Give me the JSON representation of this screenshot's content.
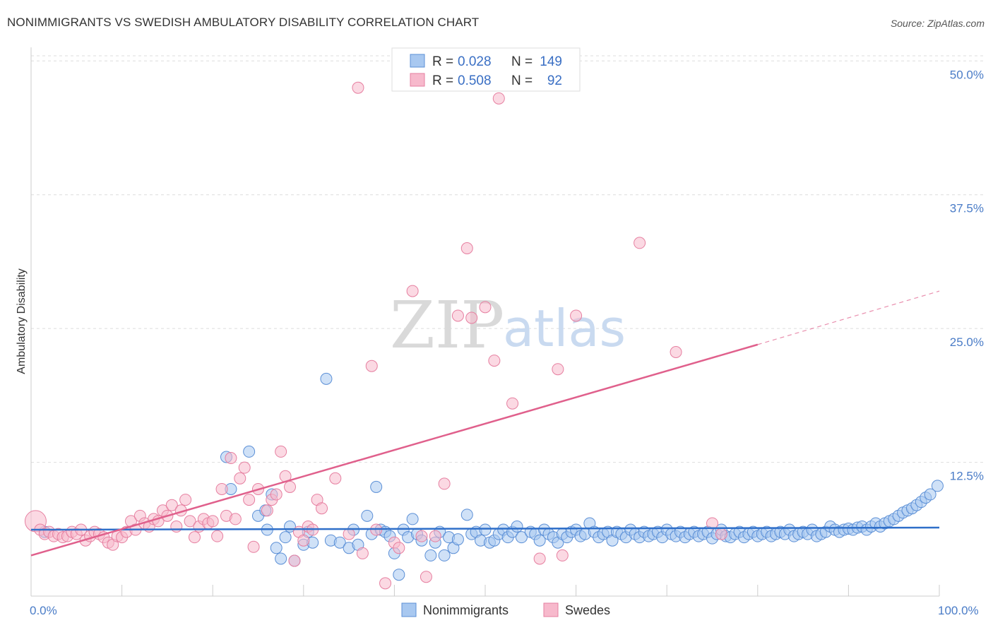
{
  "title": "NONIMMIGRANTS VS SWEDISH AMBULATORY DISABILITY CORRELATION CHART",
  "source": "Source: ZipAtlas.com",
  "watermark": {
    "zip": "ZIP",
    "atlas": "atlas"
  },
  "colors": {
    "blue_fill": "#a8c8f0",
    "blue_stroke": "#5b8fd6",
    "blue_line": "#2f6fc9",
    "pink_fill": "#f7b9cc",
    "pink_stroke": "#e67fa0",
    "pink_line": "#e0608c",
    "grid": "#dddddd",
    "axis_text": "#4a7cc7"
  },
  "legend": {
    "rows": [
      {
        "r_label": "R =",
        "r_value": "0.028",
        "n_label": "N =",
        "n_value": "149"
      },
      {
        "r_label": "R =",
        "r_value": "0.508",
        "n_label": "N =",
        "n_value": "92"
      }
    ]
  },
  "bottom_legend": [
    "Nonimmigrants",
    "Swedes"
  ],
  "chart_data": {
    "type": "scatter",
    "title": "NONIMMIGRANTS VS SWEDISH AMBULATORY DISABILITY CORRELATION CHART",
    "xlabel": "",
    "ylabel": "Ambulatory Disability",
    "xlim": [
      0,
      100
    ],
    "ylim": [
      0,
      52
    ],
    "x_tick_labels": [
      "0.0%",
      "100.0%"
    ],
    "y_ticks": [
      12.5,
      25.0,
      37.5,
      50.0
    ],
    "y_tick_labels": [
      "12.5%",
      "25.0%",
      "37.5%",
      "50.0%"
    ],
    "grid": true,
    "legend_position": "top-center",
    "series": [
      {
        "name": "Nonimmigrants",
        "color": "#a8c8f0",
        "r": 0.028,
        "n": 149,
        "trend": {
          "x": [
            0,
            100
          ],
          "y": [
            6.2,
            6.4
          ]
        },
        "points": [
          [
            1.5,
            6.0
          ],
          [
            21.5,
            13.0
          ],
          [
            22.0,
            10.0
          ],
          [
            24.0,
            13.5
          ],
          [
            25.0,
            7.5
          ],
          [
            25.8,
            8.0
          ],
          [
            26.0,
            6.2
          ],
          [
            26.5,
            9.5
          ],
          [
            27.0,
            4.5
          ],
          [
            27.5,
            3.5
          ],
          [
            28.0,
            5.5
          ],
          [
            28.5,
            6.5
          ],
          [
            29.0,
            3.3
          ],
          [
            30.0,
            4.8
          ],
          [
            30.5,
            6.0
          ],
          [
            31.0,
            5.0
          ],
          [
            32.5,
            20.3
          ],
          [
            33.0,
            5.2
          ],
          [
            34.0,
            5.0
          ],
          [
            35.0,
            4.5
          ],
          [
            35.5,
            6.2
          ],
          [
            36.0,
            4.8
          ],
          [
            37.0,
            7.5
          ],
          [
            37.5,
            5.8
          ],
          [
            38.0,
            10.2
          ],
          [
            38.5,
            6.2
          ],
          [
            39.0,
            6.0
          ],
          [
            39.5,
            5.6
          ],
          [
            40.0,
            4.0
          ],
          [
            40.5,
            2.0
          ],
          [
            41.0,
            6.2
          ],
          [
            41.5,
            5.5
          ],
          [
            42.0,
            7.2
          ],
          [
            42.5,
            5.8
          ],
          [
            43.0,
            5.2
          ],
          [
            44.0,
            3.8
          ],
          [
            44.5,
            5.0
          ],
          [
            45.0,
            6.0
          ],
          [
            45.5,
            3.8
          ],
          [
            46.0,
            5.5
          ],
          [
            46.5,
            4.5
          ],
          [
            47.0,
            5.3
          ],
          [
            48.0,
            7.6
          ],
          [
            48.5,
            5.8
          ],
          [
            49.0,
            6.0
          ],
          [
            49.5,
            5.2
          ],
          [
            50.0,
            6.2
          ],
          [
            50.5,
            5.0
          ],
          [
            51.0,
            5.2
          ],
          [
            51.5,
            5.8
          ],
          [
            52.0,
            6.2
          ],
          [
            52.5,
            5.5
          ],
          [
            53.0,
            6.0
          ],
          [
            53.5,
            6.5
          ],
          [
            54.0,
            5.5
          ],
          [
            55.0,
            6.0
          ],
          [
            55.5,
            5.8
          ],
          [
            56.0,
            5.2
          ],
          [
            56.5,
            6.2
          ],
          [
            57.0,
            5.8
          ],
          [
            57.5,
            5.5
          ],
          [
            58.0,
            5.0
          ],
          [
            58.5,
            5.8
          ],
          [
            59.0,
            5.5
          ],
          [
            59.5,
            6.0
          ],
          [
            60.0,
            6.2
          ],
          [
            60.5,
            5.6
          ],
          [
            61.0,
            5.8
          ],
          [
            61.5,
            6.8
          ],
          [
            62.0,
            6.0
          ],
          [
            62.5,
            5.5
          ],
          [
            63.0,
            5.8
          ],
          [
            63.5,
            6.0
          ],
          [
            64.0,
            5.2
          ],
          [
            64.5,
            6.0
          ],
          [
            65.0,
            5.8
          ],
          [
            65.5,
            5.5
          ],
          [
            66.0,
            6.2
          ],
          [
            66.5,
            5.8
          ],
          [
            67.0,
            5.5
          ],
          [
            67.5,
            6.0
          ],
          [
            68.0,
            5.6
          ],
          [
            68.5,
            5.8
          ],
          [
            69.0,
            6.0
          ],
          [
            69.5,
            5.5
          ],
          [
            70.0,
            6.2
          ],
          [
            70.5,
            5.8
          ],
          [
            71.0,
            5.6
          ],
          [
            71.5,
            6.0
          ],
          [
            72.0,
            5.5
          ],
          [
            72.5,
            5.8
          ],
          [
            73.0,
            6.0
          ],
          [
            73.5,
            5.6
          ],
          [
            74.0,
            5.8
          ],
          [
            74.5,
            6.0
          ],
          [
            75.0,
            5.4
          ],
          [
            75.5,
            5.8
          ],
          [
            76.0,
            6.2
          ],
          [
            76.5,
            5.6
          ],
          [
            77.0,
            5.5
          ],
          [
            77.5,
            5.8
          ],
          [
            78.0,
            6.0
          ],
          [
            78.5,
            5.5
          ],
          [
            79.0,
            5.8
          ],
          [
            79.5,
            6.0
          ],
          [
            80.0,
            5.6
          ],
          [
            80.5,
            5.8
          ],
          [
            81.0,
            6.0
          ],
          [
            81.5,
            5.6
          ],
          [
            82.0,
            5.8
          ],
          [
            82.5,
            6.0
          ],
          [
            83.0,
            5.8
          ],
          [
            83.5,
            6.2
          ],
          [
            84.0,
            5.6
          ],
          [
            84.5,
            5.8
          ],
          [
            85.0,
            6.0
          ],
          [
            85.5,
            5.8
          ],
          [
            86.0,
            6.2
          ],
          [
            86.5,
            5.6
          ],
          [
            87.0,
            5.8
          ],
          [
            87.5,
            6.0
          ],
          [
            88.0,
            6.5
          ],
          [
            88.5,
            6.2
          ],
          [
            89.0,
            6.0
          ],
          [
            89.5,
            6.2
          ],
          [
            90.0,
            6.3
          ],
          [
            90.5,
            6.2
          ],
          [
            91.0,
            6.4
          ],
          [
            91.5,
            6.5
          ],
          [
            92.0,
            6.2
          ],
          [
            92.5,
            6.5
          ],
          [
            93.0,
            6.8
          ],
          [
            93.5,
            6.5
          ],
          [
            94.0,
            6.8
          ],
          [
            94.5,
            7.0
          ],
          [
            95.0,
            7.2
          ],
          [
            95.5,
            7.5
          ],
          [
            96.0,
            7.8
          ],
          [
            96.5,
            8.0
          ],
          [
            97.0,
            8.2
          ],
          [
            97.5,
            8.5
          ],
          [
            98.0,
            8.8
          ],
          [
            98.5,
            9.2
          ],
          [
            99.0,
            9.5
          ],
          [
            99.8,
            10.3
          ]
        ]
      },
      {
        "name": "Swedes",
        "color": "#f7b9cc",
        "r": 0.508,
        "n": 92,
        "trend": {
          "x": [
            0,
            80
          ],
          "y": [
            3.8,
            23.5
          ]
        },
        "trend_dashed": {
          "x": [
            80,
            100
          ],
          "y": [
            23.5,
            28.5
          ]
        },
        "points": [
          [
            0.5,
            7.0
          ],
          [
            1.0,
            6.2
          ],
          [
            1.5,
            5.8
          ],
          [
            2.0,
            6.0
          ],
          [
            2.5,
            5.6
          ],
          [
            3.0,
            5.8
          ],
          [
            3.5,
            5.5
          ],
          [
            4.0,
            5.6
          ],
          [
            4.5,
            6.0
          ],
          [
            5.0,
            5.8
          ],
          [
            5.5,
            6.2
          ],
          [
            6.0,
            5.2
          ],
          [
            6.5,
            5.6
          ],
          [
            7.0,
            6.0
          ],
          [
            7.5,
            5.8
          ],
          [
            8.0,
            5.5
          ],
          [
            8.5,
            5.0
          ],
          [
            9.0,
            4.8
          ],
          [
            9.5,
            5.6
          ],
          [
            10.0,
            5.5
          ],
          [
            10.5,
            6.0
          ],
          [
            11.0,
            7.0
          ],
          [
            11.5,
            6.2
          ],
          [
            12.0,
            7.5
          ],
          [
            12.5,
            6.8
          ],
          [
            13.0,
            6.5
          ],
          [
            13.5,
            7.2
          ],
          [
            14.0,
            7.0
          ],
          [
            14.5,
            8.0
          ],
          [
            15.0,
            7.5
          ],
          [
            15.5,
            8.5
          ],
          [
            16.0,
            6.5
          ],
          [
            16.5,
            8.0
          ],
          [
            17.0,
            9.0
          ],
          [
            17.5,
            7.0
          ],
          [
            18.0,
            5.5
          ],
          [
            18.5,
            6.5
          ],
          [
            19.0,
            7.2
          ],
          [
            19.5,
            6.8
          ],
          [
            20.0,
            7.0
          ],
          [
            20.5,
            5.6
          ],
          [
            21.0,
            10.0
          ],
          [
            21.5,
            7.5
          ],
          [
            22.0,
            12.9
          ],
          [
            22.5,
            7.2
          ],
          [
            23.0,
            11.0
          ],
          [
            23.5,
            12.0
          ],
          [
            24.0,
            9.0
          ],
          [
            24.5,
            4.6
          ],
          [
            25.0,
            10.0
          ],
          [
            26.0,
            8.0
          ],
          [
            26.5,
            9.0
          ],
          [
            27.0,
            9.5
          ],
          [
            27.5,
            13.5
          ],
          [
            28.0,
            11.2
          ],
          [
            28.5,
            10.2
          ],
          [
            29.0,
            3.3
          ],
          [
            29.5,
            6.0
          ],
          [
            30.0,
            5.2
          ],
          [
            30.5,
            6.5
          ],
          [
            31.0,
            6.2
          ],
          [
            31.5,
            9.0
          ],
          [
            32.0,
            8.2
          ],
          [
            33.5,
            11.0
          ],
          [
            35.0,
            5.8
          ],
          [
            36.0,
            47.5
          ],
          [
            36.5,
            4.0
          ],
          [
            37.5,
            21.5
          ],
          [
            38.0,
            6.2
          ],
          [
            39.0,
            1.2
          ],
          [
            40.0,
            5.0
          ],
          [
            40.5,
            4.5
          ],
          [
            42.0,
            28.5
          ],
          [
            43.0,
            5.6
          ],
          [
            43.5,
            1.8
          ],
          [
            44.5,
            5.6
          ],
          [
            45.5,
            10.5
          ],
          [
            47.0,
            26.2
          ],
          [
            48.0,
            32.5
          ],
          [
            48.5,
            26.0
          ],
          [
            50.0,
            27.0
          ],
          [
            51.0,
            22.0
          ],
          [
            51.5,
            46.5
          ],
          [
            53.0,
            18.0
          ],
          [
            56.0,
            3.5
          ],
          [
            58.0,
            21.2
          ],
          [
            58.5,
            3.8
          ],
          [
            60.0,
            26.2
          ],
          [
            67.0,
            33.0
          ],
          [
            71.0,
            22.8
          ],
          [
            75.0,
            6.8
          ],
          [
            76.0,
            5.8
          ]
        ]
      }
    ]
  }
}
